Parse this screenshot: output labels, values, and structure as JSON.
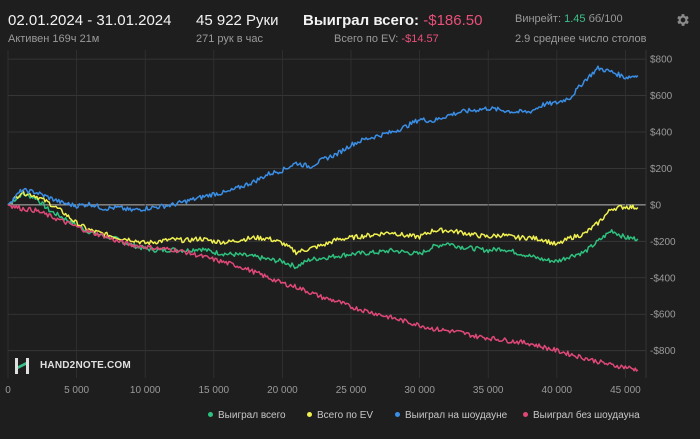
{
  "header": {
    "date_range": "02.01.2024 - 31.01.2024",
    "active_time": "Активен 169ч 21м",
    "hands_count": "45 922 Руки",
    "hands_rate": "271 рук в час",
    "won_total_label": "Выиграл всего:",
    "won_total_value": "-$186.50",
    "ev_total_label": "Всего по EV:",
    "ev_total_value": "-$14.57",
    "winrate_label": "Винрейт:",
    "winrate_value": "1.45",
    "winrate_unit": "бб/100",
    "tables_avg": "2.9 среднее число столов",
    "settings_icon": "gear-icon"
  },
  "logo": {
    "text": "HAND2NOTE.COM",
    "icon": "h2n-logo-icon"
  },
  "colors": {
    "background": "#1e1e1e",
    "won_total": "#2ec07e",
    "ev": "#f0f050",
    "showdown": "#3a8ee6",
    "no_showdown": "#e04878",
    "negative_text": "#e8507a",
    "positive_text": "#3cc08a"
  },
  "chart_data": {
    "type": "line",
    "xlabel": "",
    "ylabel": "",
    "xlim": [
      0,
      46500
    ],
    "ylim": [
      -950,
      850
    ],
    "x_ticks": [
      0,
      5000,
      10000,
      15000,
      20000,
      25000,
      30000,
      35000,
      40000,
      45000
    ],
    "x_tick_labels": [
      "0",
      "5 000",
      "10 000",
      "15 000",
      "20 000",
      "25 000",
      "30 000",
      "35 000",
      "40 000",
      "45 000"
    ],
    "y_ticks": [
      800,
      600,
      400,
      200,
      0,
      -200,
      -400,
      -600,
      -800
    ],
    "y_tick_labels": [
      "$800",
      "$600",
      "$400",
      "$200",
      "$0",
      "-$200",
      "-$400",
      "-$600",
      "-$800"
    ],
    "grid": true,
    "legend_position": "bottom",
    "x": [
      0,
      1000,
      2000,
      3000,
      4000,
      5000,
      6000,
      7000,
      8000,
      9000,
      10000,
      11000,
      12000,
      13000,
      14000,
      15000,
      16000,
      17000,
      18000,
      19000,
      20000,
      21000,
      22000,
      23000,
      24000,
      25000,
      26000,
      27000,
      28000,
      29000,
      30000,
      31000,
      32000,
      33000,
      34000,
      35000,
      36000,
      37000,
      38000,
      39000,
      40000,
      41000,
      42000,
      43000,
      44000,
      45000,
      45900
    ],
    "series": [
      {
        "name": "Выиграл всего",
        "color": "#2ec07e",
        "values": [
          0,
          60,
          40,
          -30,
          -70,
          -110,
          -150,
          -170,
          -190,
          -220,
          -240,
          -250,
          -245,
          -250,
          -240,
          -260,
          -270,
          -275,
          -285,
          -300,
          -310,
          -340,
          -300,
          -290,
          -280,
          -270,
          -265,
          -260,
          -250,
          -260,
          -270,
          -230,
          -210,
          -230,
          -240,
          -250,
          -240,
          -260,
          -280,
          -300,
          -310,
          -280,
          -260,
          -200,
          -140,
          -180,
          -186.5
        ]
      },
      {
        "name": "Всего по EV",
        "color": "#f0f050",
        "values": [
          0,
          70,
          50,
          10,
          -40,
          -100,
          -140,
          -160,
          -180,
          -190,
          -210,
          -200,
          -190,
          -195,
          -185,
          -200,
          -205,
          -190,
          -180,
          -185,
          -210,
          -260,
          -240,
          -220,
          -190,
          -180,
          -170,
          -160,
          -150,
          -170,
          -175,
          -140,
          -140,
          -150,
          -165,
          -175,
          -165,
          -180,
          -180,
          -190,
          -220,
          -180,
          -160,
          -100,
          -20,
          -10,
          -14.57
        ]
      },
      {
        "name": "Выиграл на шоудауне",
        "color": "#3a8ee6",
        "values": [
          0,
          80,
          70,
          40,
          10,
          -5,
          5,
          -20,
          -15,
          -30,
          -20,
          -10,
          0,
          20,
          40,
          60,
          70,
          100,
          130,
          170,
          190,
          230,
          210,
          250,
          280,
          330,
          360,
          380,
          400,
          430,
          470,
          460,
          490,
          510,
          520,
          530,
          520,
          510,
          510,
          550,
          560,
          590,
          680,
          750,
          730,
          700,
          710
        ]
      },
      {
        "name": "Выиграл без шоудауна",
        "color": "#e04878",
        "values": [
          0,
          -20,
          -30,
          -60,
          -90,
          -120,
          -150,
          -170,
          -200,
          -220,
          -230,
          -240,
          -245,
          -260,
          -280,
          -300,
          -320,
          -340,
          -370,
          -400,
          -430,
          -450,
          -480,
          -510,
          -530,
          -560,
          -580,
          -600,
          -620,
          -640,
          -660,
          -680,
          -690,
          -700,
          -720,
          -730,
          -740,
          -750,
          -760,
          -780,
          -800,
          -820,
          -840,
          -860,
          -880,
          -890,
          -905
        ]
      }
    ]
  }
}
